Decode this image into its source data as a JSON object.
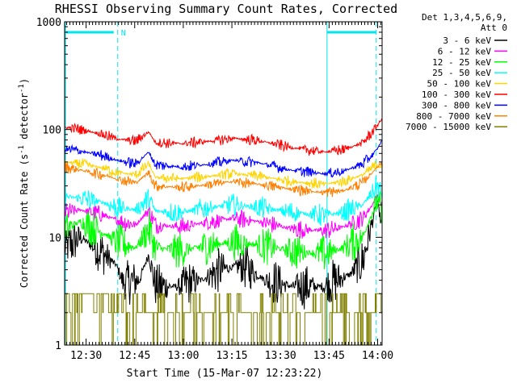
{
  "chart_data": {
    "type": "line",
    "title": "RHESSI Observing Summary Count Rates, Corrected",
    "xlabel": "Start Time (15-Mar-07 12:23:22)",
    "ylabel_parts": {
      "main": "Corrected Count Rate (s",
      "sup1": "-1",
      "mid": " detector",
      "sup2": "-1",
      "end": ")"
    },
    "yscale": "log",
    "ylim": [
      1,
      1000
    ],
    "xlim_minutes": [
      0,
      98
    ],
    "x_ticks": [
      {
        "label": "12:30",
        "t": 6.63
      },
      {
        "label": "12:45",
        "t": 21.63
      },
      {
        "label": "13:00",
        "t": 36.63
      },
      {
        "label": "13:15",
        "t": 51.63
      },
      {
        "label": "13:30",
        "t": 66.63
      },
      {
        "label": "13:45",
        "t": 81.63
      },
      {
        "label": "14:00",
        "t": 96.63
      }
    ],
    "y_ticks": [
      {
        "label": "1",
        "v": 1
      },
      {
        "label": "10",
        "v": 10
      },
      {
        "label": "100",
        "v": 100
      },
      {
        "label": "1000",
        "v": 1000
      }
    ],
    "detector_info": [
      "Det 1,3,4,5,6,9,",
      "Att 0"
    ],
    "attenuator_level": 800,
    "night_start_minutes": 16.4,
    "night_end_minutes": 81.0,
    "saa_end_minutes": 96.2,
    "night_label": "N",
    "overlay_color": "#00e5ee",
    "series": [
      {
        "name": "3 - 6 keV",
        "color": "#000000",
        "kind": "normal",
        "noise": 0.12,
        "points": [
          [
            0,
            8
          ],
          [
            5,
            10
          ],
          [
            12,
            7
          ],
          [
            16,
            5.5
          ],
          [
            18,
            3.8
          ],
          [
            23,
            4
          ],
          [
            26,
            7
          ],
          [
            28,
            3.5
          ],
          [
            35,
            3.5
          ],
          [
            42,
            4
          ],
          [
            48,
            5
          ],
          [
            55,
            5.5
          ],
          [
            62,
            4
          ],
          [
            70,
            3.5
          ],
          [
            80,
            3.5
          ],
          [
            84,
            4
          ],
          [
            88,
            4.5
          ],
          [
            92,
            6
          ],
          [
            95,
            14
          ],
          [
            96.5,
            22
          ],
          [
            98,
            12
          ]
        ]
      },
      {
        "name": "6 - 12 keV",
        "color": "#ff00ff",
        "kind": "normal",
        "noise": 0.05,
        "points": [
          [
            0,
            17
          ],
          [
            5,
            18
          ],
          [
            12,
            16
          ],
          [
            16,
            14.5
          ],
          [
            22,
            13
          ],
          [
            26,
            18
          ],
          [
            28,
            13
          ],
          [
            36,
            12.5
          ],
          [
            45,
            14
          ],
          [
            52,
            15
          ],
          [
            60,
            14
          ],
          [
            70,
            12
          ],
          [
            80,
            11.5
          ],
          [
            86,
            12.5
          ],
          [
            92,
            15
          ],
          [
            95,
            20
          ],
          [
            96.5,
            25
          ],
          [
            98,
            20
          ]
        ]
      },
      {
        "name": "12 - 25 keV",
        "color": "#00ff00",
        "kind": "normal",
        "noise": 0.1,
        "points": [
          [
            0,
            12
          ],
          [
            5,
            14
          ],
          [
            12,
            11
          ],
          [
            16,
            9
          ],
          [
            22,
            8
          ],
          [
            26,
            12
          ],
          [
            28,
            8
          ],
          [
            36,
            7.5
          ],
          [
            45,
            8.5
          ],
          [
            52,
            9
          ],
          [
            60,
            8.5
          ],
          [
            70,
            7.5
          ],
          [
            80,
            7
          ],
          [
            86,
            8
          ],
          [
            92,
            10
          ],
          [
            95,
            17
          ],
          [
            96.5,
            22
          ],
          [
            98,
            16
          ]
        ]
      },
      {
        "name": "25 - 50 keV",
        "color": "#00ffff",
        "kind": "normal",
        "noise": 0.06,
        "points": [
          [
            0,
            24
          ],
          [
            5,
            23
          ],
          [
            12,
            21
          ],
          [
            16,
            19
          ],
          [
            22,
            18
          ],
          [
            26,
            23
          ],
          [
            28,
            17.5
          ],
          [
            36,
            17
          ],
          [
            45,
            19
          ],
          [
            52,
            20
          ],
          [
            60,
            19
          ],
          [
            70,
            17
          ],
          [
            80,
            16
          ],
          [
            86,
            17
          ],
          [
            92,
            20
          ],
          [
            95,
            26
          ],
          [
            96.5,
            30
          ],
          [
            98,
            25
          ]
        ]
      },
      {
        "name": "50 - 100 keV",
        "color": "#ffd400",
        "kind": "normal",
        "noise": 0.03,
        "points": [
          [
            0,
            50
          ],
          [
            5,
            48
          ],
          [
            12,
            44
          ],
          [
            16,
            40
          ],
          [
            22,
            38
          ],
          [
            26,
            48
          ],
          [
            28,
            36
          ],
          [
            36,
            35
          ],
          [
            45,
            37
          ],
          [
            52,
            39
          ],
          [
            60,
            37
          ],
          [
            70,
            33
          ],
          [
            80,
            31
          ],
          [
            86,
            33
          ],
          [
            92,
            38
          ],
          [
            95,
            44
          ],
          [
            96.5,
            48
          ],
          [
            98,
            45
          ]
        ]
      },
      {
        "name": "100 - 300 keV",
        "color": "#ff0000",
        "kind": "normal",
        "noise": 0.03,
        "points": [
          [
            0,
            105
          ],
          [
            5,
            100
          ],
          [
            12,
            90
          ],
          [
            16,
            82
          ],
          [
            22,
            78
          ],
          [
            26,
            95
          ],
          [
            28,
            76
          ],
          [
            36,
            74
          ],
          [
            45,
            78
          ],
          [
            52,
            83
          ],
          [
            60,
            79
          ],
          [
            70,
            68
          ],
          [
            80,
            62
          ],
          [
            86,
            65
          ],
          [
            92,
            75
          ],
          [
            95,
            95
          ],
          [
            96.5,
            110
          ],
          [
            98,
            125
          ]
        ]
      },
      {
        "name": "300 - 800 keV",
        "color": "#0000ff",
        "kind": "normal",
        "noise": 0.03,
        "points": [
          [
            0,
            66
          ],
          [
            5,
            63
          ],
          [
            12,
            57
          ],
          [
            16,
            52
          ],
          [
            22,
            48
          ],
          [
            26,
            62
          ],
          [
            28,
            47
          ],
          [
            36,
            45
          ],
          [
            45,
            48
          ],
          [
            52,
            52
          ],
          [
            60,
            49
          ],
          [
            70,
            42
          ],
          [
            80,
            39
          ],
          [
            86,
            41
          ],
          [
            92,
            48
          ],
          [
            95,
            58
          ],
          [
            96.5,
            66
          ],
          [
            98,
            80
          ]
        ]
      },
      {
        "name": "800 - 7000 keV",
        "color": "#ff8000",
        "kind": "normal",
        "noise": 0.03,
        "points": [
          [
            0,
            45
          ],
          [
            5,
            42
          ],
          [
            12,
            38
          ],
          [
            16,
            35
          ],
          [
            22,
            32
          ],
          [
            26,
            40
          ],
          [
            28,
            30
          ],
          [
            36,
            29
          ],
          [
            45,
            31
          ],
          [
            52,
            33
          ],
          [
            60,
            31
          ],
          [
            70,
            28
          ],
          [
            80,
            26
          ],
          [
            86,
            27
          ],
          [
            92,
            32
          ],
          [
            95,
            40
          ],
          [
            96.5,
            45
          ],
          [
            98,
            50
          ]
        ]
      },
      {
        "name": "7000 - 15000 keV",
        "color": "#808000",
        "kind": "step",
        "noise": 0,
        "points": [
          [
            0,
            3
          ],
          [
            16,
            3
          ],
          [
            20,
            2
          ],
          [
            40,
            2
          ],
          [
            60,
            2
          ],
          [
            80,
            2
          ],
          [
            94,
            2
          ],
          [
            98,
            3
          ]
        ]
      }
    ]
  }
}
